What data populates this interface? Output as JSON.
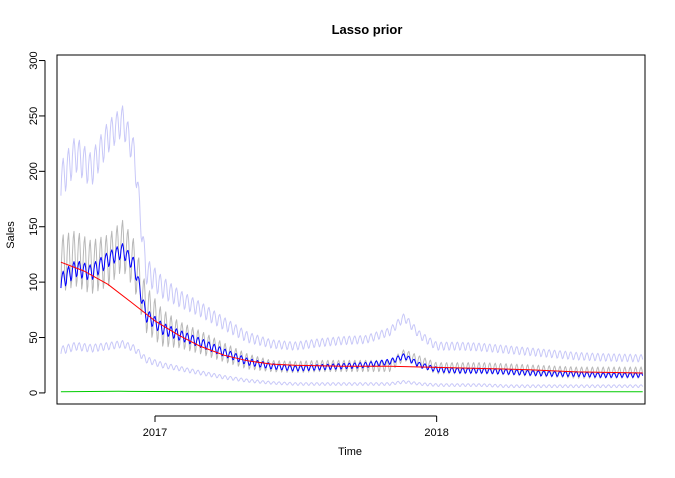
{
  "chart_data": {
    "type": "line",
    "title": "Lasso prior",
    "xlabel": "Time",
    "ylabel": "Sales",
    "x_range": [
      "2016-08-27",
      "2018-09-28"
    ],
    "ylim": [
      -10,
      305
    ],
    "yticks": [
      0,
      50,
      100,
      150,
      200,
      250,
      300
    ],
    "xticks": [
      {
        "date": "2017-01-01",
        "label": "2017"
      },
      {
        "date": "2018-01-01",
        "label": "2018"
      }
    ],
    "grid": false,
    "legend": "none",
    "weekly_cycle": true,
    "series": [
      {
        "role": "observed",
        "color": "#b8b8b8",
        "points": [
          [
            "2016-09-01",
            115
          ],
          [
            "2016-09-20",
            120
          ],
          [
            "2016-10-10",
            112
          ],
          [
            "2016-11-01",
            118
          ],
          [
            "2016-11-20",
            132
          ],
          [
            "2016-12-05",
            115
          ],
          [
            "2016-12-20",
            75
          ],
          [
            "2017-01-10",
            58
          ],
          [
            "2017-02-01",
            52
          ],
          [
            "2017-03-01",
            45
          ],
          [
            "2017-04-01",
            36
          ],
          [
            "2017-05-01",
            28
          ],
          [
            "2017-06-01",
            24
          ],
          [
            "2017-07-01",
            23
          ],
          [
            "2017-08-01",
            24
          ],
          [
            "2017-09-01",
            24
          ],
          [
            "2017-10-01",
            24
          ],
          [
            "2017-11-01",
            24
          ],
          [
            "2017-11-20",
            34
          ],
          [
            "2017-12-10",
            28
          ],
          [
            "2018-01-01",
            22
          ],
          [
            "2018-02-01",
            22
          ],
          [
            "2018-03-01",
            22
          ],
          [
            "2018-04-01",
            21
          ],
          [
            "2018-05-01",
            20
          ],
          [
            "2018-06-01",
            19
          ],
          [
            "2018-07-01",
            18
          ],
          [
            "2018-08-01",
            18
          ],
          [
            "2018-09-25",
            18
          ]
        ],
        "amplitude": [
          [
            "2016-09-01",
            60
          ],
          [
            "2016-12-20",
            50
          ],
          [
            "2017-02-01",
            28
          ],
          [
            "2017-06-01",
            12
          ],
          [
            "2018-09-25",
            12
          ]
        ]
      },
      {
        "role": "upper-interval",
        "color": "#c8c8f8",
        "points": [
          [
            "2016-09-01",
            190
          ],
          [
            "2016-09-20",
            215
          ],
          [
            "2016-10-10",
            200
          ],
          [
            "2016-11-01",
            230
          ],
          [
            "2016-11-20",
            245
          ],
          [
            "2016-12-05",
            215
          ],
          [
            "2016-12-20",
            110
          ],
          [
            "2017-01-10",
            95
          ],
          [
            "2017-02-01",
            85
          ],
          [
            "2017-03-01",
            75
          ],
          [
            "2017-04-01",
            62
          ],
          [
            "2017-05-01",
            50
          ],
          [
            "2017-06-01",
            44
          ],
          [
            "2017-07-01",
            42
          ],
          [
            "2017-08-01",
            45
          ],
          [
            "2017-09-01",
            47
          ],
          [
            "2017-10-01",
            48
          ],
          [
            "2017-11-01",
            55
          ],
          [
            "2017-11-20",
            68
          ],
          [
            "2017-12-10",
            52
          ],
          [
            "2018-01-01",
            42
          ],
          [
            "2018-02-01",
            42
          ],
          [
            "2018-03-01",
            41
          ],
          [
            "2018-04-01",
            39
          ],
          [
            "2018-05-01",
            37
          ],
          [
            "2018-06-01",
            35
          ],
          [
            "2018-07-01",
            33
          ],
          [
            "2018-08-01",
            32
          ],
          [
            "2018-09-25",
            31
          ]
        ],
        "amplitude": [
          [
            "2016-09-01",
            40
          ],
          [
            "2016-12-20",
            28
          ],
          [
            "2017-02-01",
            18
          ],
          [
            "2017-06-01",
            9
          ],
          [
            "2018-09-25",
            8
          ]
        ]
      },
      {
        "role": "lower-interval",
        "color": "#c8c8f8",
        "points": [
          [
            "2016-09-01",
            38
          ],
          [
            "2016-09-20",
            42
          ],
          [
            "2016-10-10",
            40
          ],
          [
            "2016-11-01",
            42
          ],
          [
            "2016-11-20",
            44
          ],
          [
            "2016-12-05",
            40
          ],
          [
            "2016-12-20",
            30
          ],
          [
            "2017-01-10",
            25
          ],
          [
            "2017-02-01",
            22
          ],
          [
            "2017-03-01",
            18
          ],
          [
            "2017-04-01",
            14
          ],
          [
            "2017-05-01",
            11
          ],
          [
            "2017-06-01",
            9
          ],
          [
            "2017-07-01",
            8
          ],
          [
            "2017-08-01",
            8
          ],
          [
            "2017-09-01",
            8
          ],
          [
            "2017-10-01",
            8
          ],
          [
            "2017-11-01",
            8
          ],
          [
            "2017-11-20",
            10
          ],
          [
            "2017-12-10",
            8
          ],
          [
            "2018-01-01",
            7
          ],
          [
            "2018-02-01",
            7
          ],
          [
            "2018-03-01",
            7
          ],
          [
            "2018-04-01",
            6
          ],
          [
            "2018-05-01",
            6
          ],
          [
            "2018-06-01",
            6
          ],
          [
            "2018-07-01",
            6
          ],
          [
            "2018-08-01",
            6
          ],
          [
            "2018-09-25",
            6
          ]
        ],
        "amplitude": [
          [
            "2016-09-01",
            9
          ],
          [
            "2016-12-20",
            7
          ],
          [
            "2017-02-01",
            5
          ],
          [
            "2017-06-01",
            3
          ],
          [
            "2018-09-25",
            3
          ]
        ]
      },
      {
        "role": "fitted",
        "color": "#0000ff",
        "points": [
          [
            "2016-09-01",
            100
          ],
          [
            "2016-09-20",
            112
          ],
          [
            "2016-10-10",
            108
          ],
          [
            "2016-11-01",
            120
          ],
          [
            "2016-11-20",
            128
          ],
          [
            "2016-12-05",
            115
          ],
          [
            "2016-12-20",
            70
          ],
          [
            "2017-01-10",
            58
          ],
          [
            "2017-02-01",
            52
          ],
          [
            "2017-03-01",
            45
          ],
          [
            "2017-04-01",
            36
          ],
          [
            "2017-05-01",
            28
          ],
          [
            "2017-06-01",
            24
          ],
          [
            "2017-07-01",
            22
          ],
          [
            "2017-08-01",
            23
          ],
          [
            "2017-09-01",
            24
          ],
          [
            "2017-10-01",
            25
          ],
          [
            "2017-11-01",
            28
          ],
          [
            "2017-11-20",
            33
          ],
          [
            "2017-12-10",
            25
          ],
          [
            "2018-01-01",
            21
          ],
          [
            "2018-02-01",
            20
          ],
          [
            "2018-03-01",
            20
          ],
          [
            "2018-04-01",
            19
          ],
          [
            "2018-05-01",
            18
          ],
          [
            "2018-06-01",
            17
          ],
          [
            "2018-07-01",
            17
          ],
          [
            "2018-08-01",
            16
          ],
          [
            "2018-09-25",
            16
          ]
        ],
        "amplitude": [
          [
            "2016-09-01",
            18
          ],
          [
            "2016-12-20",
            14
          ],
          [
            "2017-02-01",
            11
          ],
          [
            "2017-06-01",
            6
          ],
          [
            "2018-09-25",
            5
          ]
        ]
      },
      {
        "role": "trend",
        "color": "#ff0000",
        "points": [
          [
            "2016-09-01",
            118
          ],
          [
            "2016-10-01",
            110
          ],
          [
            "2016-11-01",
            98
          ],
          [
            "2016-12-01",
            82
          ],
          [
            "2017-01-01",
            65
          ],
          [
            "2017-02-01",
            52
          ],
          [
            "2017-03-01",
            42
          ],
          [
            "2017-04-01",
            34
          ],
          [
            "2017-05-01",
            29
          ],
          [
            "2017-06-01",
            26
          ],
          [
            "2017-07-01",
            25
          ],
          [
            "2017-09-01",
            24
          ],
          [
            "2017-11-01",
            24
          ],
          [
            "2018-01-01",
            23
          ],
          [
            "2018-03-01",
            22
          ],
          [
            "2018-05-01",
            21
          ],
          [
            "2018-07-01",
            19
          ],
          [
            "2018-09-25",
            18
          ]
        ]
      },
      {
        "role": "baseline",
        "color": "#00cc00",
        "points": [
          [
            "2016-09-01",
            1
          ],
          [
            "2016-11-15",
            1.5
          ],
          [
            "2017-03-01",
            1
          ],
          [
            "2018-09-25",
            1
          ]
        ]
      }
    ]
  }
}
